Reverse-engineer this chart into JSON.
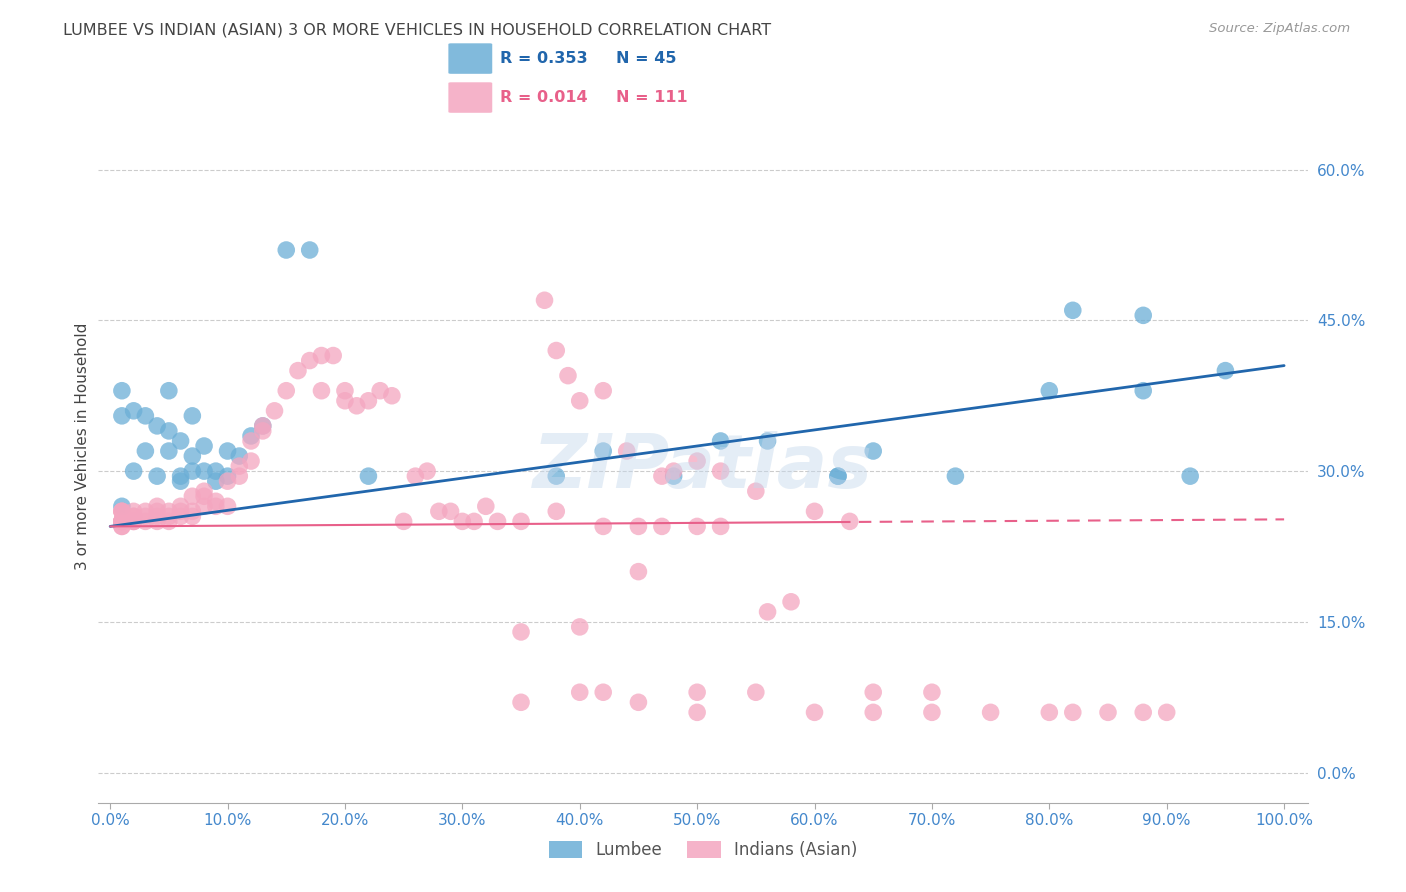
{
  "title": "LUMBEE VS INDIAN (ASIAN) 3 OR MORE VEHICLES IN HOUSEHOLD CORRELATION CHART",
  "source": "Source: ZipAtlas.com",
  "ylabel": "3 or more Vehicles in Household",
  "xlabel": "",
  "xlim": [
    -0.01,
    1.02
  ],
  "ylim": [
    -0.03,
    0.68
  ],
  "xticks": [
    0.0,
    0.1,
    0.2,
    0.3,
    0.4,
    0.5,
    0.6,
    0.7,
    0.8,
    0.9,
    1.0
  ],
  "xticklabels": [
    "0.0%",
    "10.0%",
    "20.0%",
    "30.0%",
    "40.0%",
    "50.0%",
    "60.0%",
    "70.0%",
    "80.0%",
    "90.0%",
    "100.0%"
  ],
  "yticks": [
    0.0,
    0.15,
    0.3,
    0.45,
    0.6
  ],
  "yticklabels": [
    "0.0%",
    "15.0%",
    "30.0%",
    "45.0%",
    "60.0%"
  ],
  "lumbee_R": 0.353,
  "lumbee_N": 45,
  "indian_R": 0.014,
  "indian_N": 111,
  "lumbee_color": "#6baed6",
  "indian_color": "#f4a6c0",
  "lumbee_line_color": "#2166ac",
  "indian_line_color": "#e8608a",
  "grid_color": "#cccccc",
  "background_color": "#ffffff",
  "title_color": "#444444",
  "tick_label_color": "#4488cc",
  "watermark": "ZIPatlas",
  "legend_lumbee": "Lumbee",
  "legend_indian": "Indians (Asian)",
  "lumbee_trend_x0": 0.0,
  "lumbee_trend_y0": 0.245,
  "lumbee_trend_x1": 1.0,
  "lumbee_trend_y1": 0.405,
  "indian_trend_x0": 0.0,
  "indian_trend_y0": 0.245,
  "indian_trend_x1": 1.0,
  "indian_trend_y1": 0.252,
  "lumbee_x": [
    0.01,
    0.01,
    0.02,
    0.02,
    0.03,
    0.03,
    0.04,
    0.04,
    0.05,
    0.05,
    0.05,
    0.06,
    0.06,
    0.06,
    0.07,
    0.07,
    0.07,
    0.08,
    0.08,
    0.09,
    0.09,
    0.1,
    0.1,
    0.11,
    0.12,
    0.13,
    0.15,
    0.17,
    0.22,
    0.38,
    0.42,
    0.48,
    0.52,
    0.56,
    0.62,
    0.62,
    0.65,
    0.72,
    0.8,
    0.82,
    0.88,
    0.88,
    0.92,
    0.95,
    0.01
  ],
  "lumbee_y": [
    0.265,
    0.355,
    0.3,
    0.36,
    0.32,
    0.355,
    0.295,
    0.345,
    0.34,
    0.32,
    0.38,
    0.29,
    0.295,
    0.33,
    0.3,
    0.315,
    0.355,
    0.3,
    0.325,
    0.29,
    0.3,
    0.32,
    0.295,
    0.315,
    0.335,
    0.345,
    0.52,
    0.52,
    0.295,
    0.295,
    0.32,
    0.295,
    0.33,
    0.33,
    0.295,
    0.295,
    0.32,
    0.295,
    0.38,
    0.46,
    0.455,
    0.38,
    0.295,
    0.4,
    0.38
  ],
  "indian_x": [
    0.01,
    0.01,
    0.01,
    0.01,
    0.01,
    0.01,
    0.01,
    0.01,
    0.01,
    0.01,
    0.01,
    0.02,
    0.02,
    0.02,
    0.02,
    0.02,
    0.02,
    0.03,
    0.03,
    0.03,
    0.04,
    0.04,
    0.04,
    0.04,
    0.05,
    0.05,
    0.05,
    0.06,
    0.06,
    0.06,
    0.07,
    0.07,
    0.07,
    0.08,
    0.08,
    0.08,
    0.09,
    0.09,
    0.1,
    0.1,
    0.11,
    0.11,
    0.12,
    0.12,
    0.13,
    0.13,
    0.14,
    0.15,
    0.16,
    0.17,
    0.18,
    0.18,
    0.19,
    0.2,
    0.2,
    0.21,
    0.22,
    0.23,
    0.24,
    0.25,
    0.26,
    0.27,
    0.28,
    0.29,
    0.3,
    0.31,
    0.32,
    0.33,
    0.35,
    0.37,
    0.38,
    0.39,
    0.4,
    0.42,
    0.44,
    0.47,
    0.48,
    0.5,
    0.52,
    0.55,
    0.56,
    0.58,
    0.6,
    0.63,
    0.38,
    0.42,
    0.45,
    0.47,
    0.5,
    0.52,
    0.35,
    0.4,
    0.45,
    0.5,
    0.35,
    0.4,
    0.45,
    0.5,
    0.55,
    0.6,
    0.65,
    0.7,
    0.75,
    0.8,
    0.82,
    0.85,
    0.88,
    0.9,
    0.65,
    0.7,
    0.42
  ],
  "indian_y": [
    0.25,
    0.25,
    0.25,
    0.26,
    0.26,
    0.26,
    0.25,
    0.25,
    0.25,
    0.245,
    0.245,
    0.25,
    0.25,
    0.255,
    0.26,
    0.255,
    0.25,
    0.26,
    0.255,
    0.25,
    0.255,
    0.26,
    0.25,
    0.265,
    0.255,
    0.26,
    0.25,
    0.26,
    0.255,
    0.265,
    0.26,
    0.255,
    0.275,
    0.265,
    0.275,
    0.28,
    0.27,
    0.265,
    0.265,
    0.29,
    0.295,
    0.305,
    0.31,
    0.33,
    0.34,
    0.345,
    0.36,
    0.38,
    0.4,
    0.41,
    0.38,
    0.415,
    0.415,
    0.38,
    0.37,
    0.365,
    0.37,
    0.38,
    0.375,
    0.25,
    0.295,
    0.3,
    0.26,
    0.26,
    0.25,
    0.25,
    0.265,
    0.25,
    0.25,
    0.47,
    0.42,
    0.395,
    0.37,
    0.38,
    0.32,
    0.295,
    0.3,
    0.31,
    0.3,
    0.28,
    0.16,
    0.17,
    0.26,
    0.25,
    0.26,
    0.245,
    0.245,
    0.245,
    0.245,
    0.245,
    0.14,
    0.145,
    0.2,
    0.08,
    0.07,
    0.08,
    0.07,
    0.06,
    0.08,
    0.06,
    0.06,
    0.06,
    0.06,
    0.06,
    0.06,
    0.06,
    0.06,
    0.06,
    0.08,
    0.08,
    0.08
  ]
}
